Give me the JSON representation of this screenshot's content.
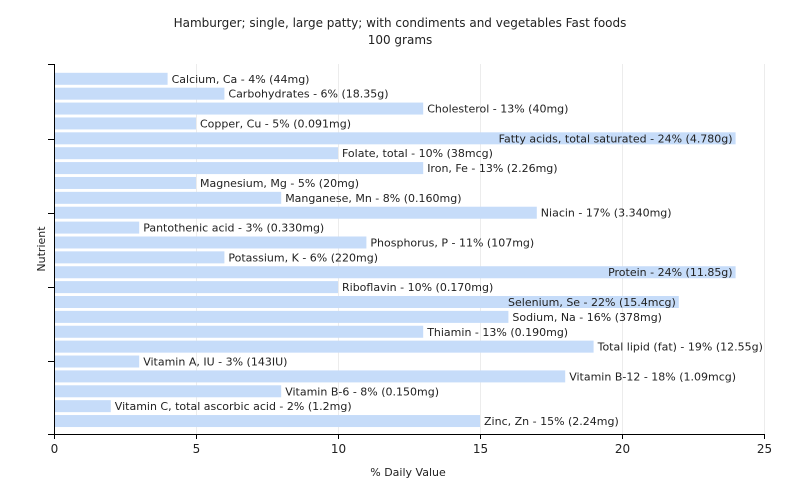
{
  "chart_data": {
    "type": "bar",
    "orientation": "horizontal",
    "title": "Hamburger; single, large patty; with condiments and vegetables Fast foods",
    "subtitle": "100 grams",
    "xlabel": "% Daily Value",
    "ylabel": "Nutrient",
    "xlim": [
      0,
      25
    ],
    "xticks": [
      0,
      5,
      10,
      15,
      20,
      25
    ],
    "grid": true,
    "bar_color": "#c6dcf9",
    "categories": [
      "Calcium, Ca",
      "Carbohydrates",
      "Cholesterol",
      "Copper, Cu",
      "Fatty acids, total saturated",
      "Folate, total",
      "Iron, Fe",
      "Magnesium, Mg",
      "Manganese, Mn",
      "Niacin",
      "Pantothenic acid",
      "Phosphorus, P",
      "Potassium, K",
      "Protein",
      "Riboflavin",
      "Selenium, Se",
      "Sodium, Na",
      "Thiamin",
      "Total lipid (fat)",
      "Vitamin A, IU",
      "Vitamin B-12",
      "Vitamin B-6",
      "Vitamin C, total ascorbic acid",
      "Zinc, Zn"
    ],
    "values": [
      4,
      6,
      13,
      5,
      24,
      10,
      13,
      5,
      8,
      17,
      3,
      11,
      6,
      24,
      10,
      22,
      16,
      13,
      19,
      3,
      18,
      8,
      2,
      15
    ],
    "labels": [
      "Calcium, Ca - 4% (44mg)",
      "Carbohydrates - 6% (18.35g)",
      "Cholesterol - 13% (40mg)",
      "Copper, Cu - 5% (0.091mg)",
      "Fatty acids, total saturated - 24% (4.780g)",
      "Folate, total - 10% (38mcg)",
      "Iron, Fe - 13% (2.26mg)",
      "Magnesium, Mg - 5% (20mg)",
      "Manganese, Mn - 8% (0.160mg)",
      "Niacin - 17% (3.340mg)",
      "Pantothenic acid - 3% (0.330mg)",
      "Phosphorus, P - 11% (107mg)",
      "Potassium, K - 6% (220mg)",
      "Protein - 24% (11.85g)",
      "Riboflavin - 10% (0.170mg)",
      "Selenium, Se - 22% (15.4mcg)",
      "Sodium, Na - 16% (378mg)",
      "Thiamin - 13% (0.190mg)",
      "Total lipid (fat) - 19% (12.55g)",
      "Vitamin A, IU - 3% (143IU)",
      "Vitamin B-12 - 18% (1.09mcg)",
      "Vitamin B-6 - 8% (0.150mg)",
      "Vitamin C, total ascorbic acid - 2% (1.2mg)",
      "Zinc, Zn - 15% (2.24mg)"
    ]
  }
}
